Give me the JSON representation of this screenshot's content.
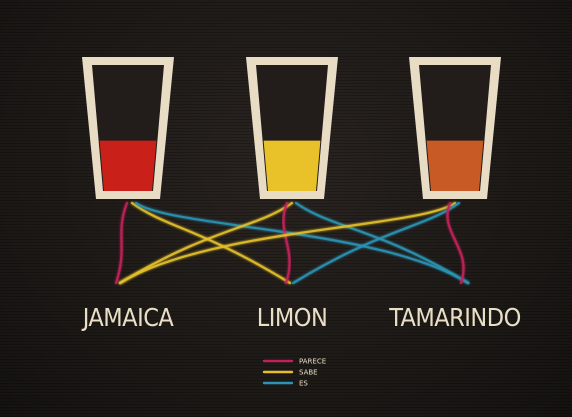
{
  "drinks": [
    {
      "name": "JAMAICA",
      "liquid_color": "#c9211a",
      "fill_level": 0.4
    },
    {
      "name": "LIMON",
      "liquid_color": "#e9c22a",
      "fill_level": 0.4
    },
    {
      "name": "TAMARINDO",
      "liquid_color": "#c85a26",
      "fill_level": 0.4
    }
  ],
  "legend": [
    {
      "label": "PARECE",
      "color": "#c4215a"
    },
    {
      "label": "SABE",
      "color": "#e3c029"
    },
    {
      "label": "ES",
      "color": "#2b93b3"
    }
  ],
  "connections": [
    {
      "from": "JAMAICA",
      "to": "JAMAICA",
      "relation": "PARECE"
    },
    {
      "from": "JAMAICA",
      "to": "LIMON",
      "relation": "SABE"
    },
    {
      "from": "JAMAICA",
      "to": "TAMARINDO",
      "relation": "ES"
    },
    {
      "from": "LIMON",
      "to": "JAMAICA",
      "relation": "SABE"
    },
    {
      "from": "LIMON",
      "to": "LIMON",
      "relation": "PARECE"
    },
    {
      "from": "LIMON",
      "to": "TAMARINDO",
      "relation": "ES"
    },
    {
      "from": "TAMARINDO",
      "to": "JAMAICA",
      "relation": "SABE"
    },
    {
      "from": "TAMARINDO",
      "to": "LIMON",
      "relation": "ES"
    },
    {
      "from": "TAMARINDO",
      "to": "TAMARINDO",
      "relation": "PARECE"
    }
  ]
}
